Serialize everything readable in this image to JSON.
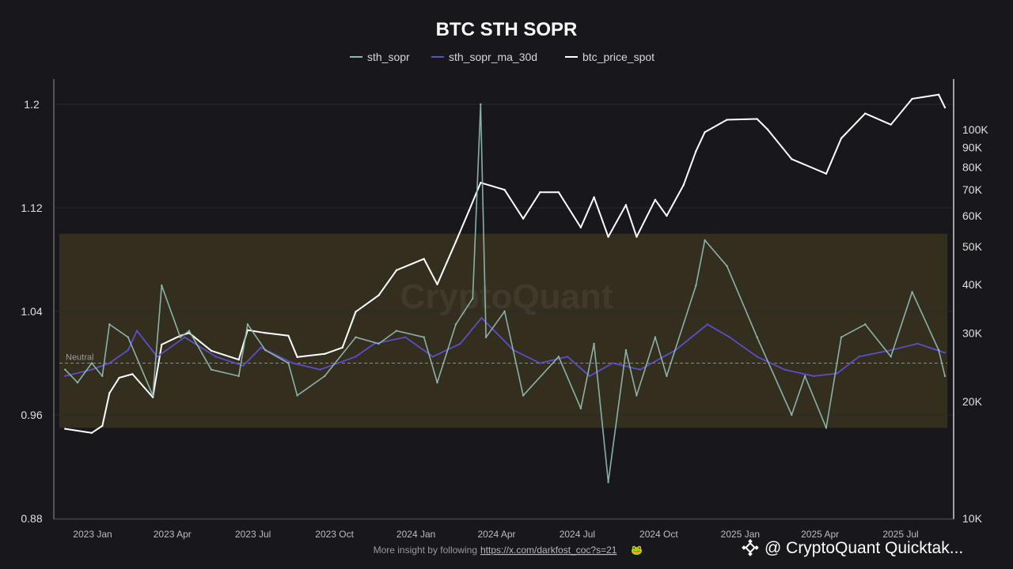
{
  "chart_data": {
    "type": "line",
    "title": "BTC STH SOPR",
    "legend": {
      "placement": "top-center",
      "entries": [
        {
          "name": "sth_sopr",
          "color": "#8fb8b0"
        },
        {
          "name": "sth_sopr_ma_30d",
          "color": "#5b4fc8"
        },
        {
          "name": "btc_price_spot",
          "color": "#ffffff"
        }
      ]
    },
    "y_left": {
      "ticks": [
        "1.2",
        "1.12",
        "1.04",
        "0.96",
        "0.88"
      ],
      "tick_values": [
        1.2,
        1.12,
        1.04,
        0.96,
        0.88
      ],
      "ylim": [
        0.88,
        1.2
      ]
    },
    "y_right": {
      "scale": "log",
      "ticks": [
        "100K",
        "90K",
        "80K",
        "70K",
        "60K",
        "50K",
        "40K",
        "30K",
        "20K",
        "10K"
      ],
      "tick_values": [
        100000,
        90000,
        80000,
        70000,
        60000,
        50000,
        40000,
        30000,
        20000,
        10000
      ]
    },
    "x_axis": {
      "ticks": [
        "2023 Jan",
        "2023 Apr",
        "2023 Jul",
        "2023 Oct",
        "2024 Jan",
        "2024 Apr",
        "2024 Jul",
        "2024 Oct",
        "2025 Jan",
        "2025 Apr",
        "2025 Jul"
      ],
      "tick_dates": [
        "2023-01-01",
        "2023-04-01",
        "2023-07-01",
        "2023-10-01",
        "2024-01-01",
        "2024-04-01",
        "2024-07-01",
        "2024-10-01",
        "2025-01-01",
        "2025-04-01",
        "2025-07-01"
      ]
    },
    "band": {
      "y_from": 0.95,
      "y_to": 1.1,
      "color": "#3a3220"
    },
    "neutral_line": {
      "label": "Neutral",
      "value": 1.0
    },
    "grid": true,
    "series": [
      {
        "name": "btc_price_spot",
        "points": [
          [
            "2022-12-01",
            17000
          ],
          [
            "2022-12-31",
            16600
          ],
          [
            "2023-01-12",
            17300
          ],
          [
            "2023-01-20",
            21000
          ],
          [
            "2023-01-31",
            23000
          ],
          [
            "2023-02-15",
            23500
          ],
          [
            "2023-03-10",
            20500
          ],
          [
            "2023-03-20",
            28000
          ],
          [
            "2023-04-10",
            29500
          ],
          [
            "2023-04-20",
            30000
          ],
          [
            "2023-05-15",
            27000
          ],
          [
            "2023-06-15",
            25600
          ],
          [
            "2023-06-25",
            30500
          ],
          [
            "2023-07-15",
            30000
          ],
          [
            "2023-08-10",
            29500
          ],
          [
            "2023-08-20",
            26000
          ],
          [
            "2023-09-20",
            26500
          ],
          [
            "2023-10-10",
            27500
          ],
          [
            "2023-10-25",
            34000
          ],
          [
            "2023-11-20",
            37500
          ],
          [
            "2023-12-10",
            43500
          ],
          [
            "2024-01-10",
            46500
          ],
          [
            "2024-01-25",
            40000
          ],
          [
            "2024-02-15",
            51500
          ],
          [
            "2024-03-01",
            62000
          ],
          [
            "2024-03-14",
            73000
          ],
          [
            "2024-04-10",
            70000
          ],
          [
            "2024-05-01",
            59000
          ],
          [
            "2024-05-20",
            69000
          ],
          [
            "2024-06-10",
            69000
          ],
          [
            "2024-07-05",
            56000
          ],
          [
            "2024-07-20",
            67000
          ],
          [
            "2024-08-05",
            53000
          ],
          [
            "2024-08-25",
            64000
          ],
          [
            "2024-09-06",
            53000
          ],
          [
            "2024-09-27",
            66000
          ],
          [
            "2024-10-10",
            60000
          ],
          [
            "2024-10-29",
            72000
          ],
          [
            "2024-11-12",
            88000
          ],
          [
            "2024-11-22",
            98500
          ],
          [
            "2024-12-17",
            106000
          ],
          [
            "2025-01-20",
            106500
          ],
          [
            "2025-02-01",
            100000
          ],
          [
            "2025-02-28",
            84000
          ],
          [
            "2025-04-08",
            77000
          ],
          [
            "2025-04-25",
            95000
          ],
          [
            "2025-05-22",
            110000
          ],
          [
            "2025-06-20",
            103000
          ],
          [
            "2025-07-14",
            120000
          ],
          [
            "2025-08-13",
            123000
          ],
          [
            "2025-08-20",
            114000
          ]
        ]
      },
      {
        "name": "sth_sopr_ma_30d",
        "points": [
          [
            "2022-12-01",
            0.99
          ],
          [
            "2022-12-31",
            0.995
          ],
          [
            "2023-01-20",
            1.0
          ],
          [
            "2023-02-10",
            1.01
          ],
          [
            "2023-02-20",
            1.025
          ],
          [
            "2023-03-15",
            1.005
          ],
          [
            "2023-04-15",
            1.02
          ],
          [
            "2023-05-20",
            1.005
          ],
          [
            "2023-06-20",
            0.998
          ],
          [
            "2023-07-10",
            1.012
          ],
          [
            "2023-08-15",
            1.0
          ],
          [
            "2023-09-15",
            0.995
          ],
          [
            "2023-10-25",
            1.005
          ],
          [
            "2023-11-15",
            1.015
          ],
          [
            "2023-12-20",
            1.02
          ],
          [
            "2024-01-20",
            1.005
          ],
          [
            "2024-02-20",
            1.015
          ],
          [
            "2024-03-15",
            1.035
          ],
          [
            "2024-04-20",
            1.01
          ],
          [
            "2024-05-20",
            1.0
          ],
          [
            "2024-06-20",
            1.005
          ],
          [
            "2024-07-15",
            0.99
          ],
          [
            "2024-08-10",
            1.0
          ],
          [
            "2024-09-10",
            0.995
          ],
          [
            "2024-10-20",
            1.01
          ],
          [
            "2024-11-25",
            1.03
          ],
          [
            "2024-12-20",
            1.02
          ],
          [
            "2025-01-20",
            1.005
          ],
          [
            "2025-02-20",
            0.995
          ],
          [
            "2025-03-25",
            0.99
          ],
          [
            "2025-04-20",
            0.992
          ],
          [
            "2025-05-15",
            1.005
          ],
          [
            "2025-06-20",
            1.01
          ],
          [
            "2025-07-20",
            1.015
          ],
          [
            "2025-08-20",
            1.008
          ]
        ]
      },
      {
        "name": "sth_sopr",
        "points": [
          [
            "2022-12-01",
            0.995
          ],
          [
            "2022-12-15",
            0.985
          ],
          [
            "2022-12-31",
            1.0
          ],
          [
            "2023-01-12",
            0.99
          ],
          [
            "2023-01-20",
            1.03
          ],
          [
            "2023-02-10",
            1.02
          ],
          [
            "2023-03-10",
            0.975
          ],
          [
            "2023-03-20",
            1.06
          ],
          [
            "2023-04-10",
            1.02
          ],
          [
            "2023-04-20",
            1.025
          ],
          [
            "2023-05-15",
            0.995
          ],
          [
            "2023-06-15",
            0.99
          ],
          [
            "2023-06-25",
            1.03
          ],
          [
            "2023-07-15",
            1.01
          ],
          [
            "2023-08-10",
            1.0
          ],
          [
            "2023-08-20",
            0.975
          ],
          [
            "2023-09-20",
            0.99
          ],
          [
            "2023-10-25",
            1.02
          ],
          [
            "2023-11-20",
            1.015
          ],
          [
            "2023-12-10",
            1.025
          ],
          [
            "2024-01-10",
            1.02
          ],
          [
            "2024-01-25",
            0.985
          ],
          [
            "2024-02-15",
            1.03
          ],
          [
            "2024-03-05",
            1.05
          ],
          [
            "2024-03-14",
            1.2
          ],
          [
            "2024-03-20",
            1.02
          ],
          [
            "2024-04-10",
            1.04
          ],
          [
            "2024-05-01",
            0.975
          ],
          [
            "2024-06-10",
            1.005
          ],
          [
            "2024-07-05",
            0.965
          ],
          [
            "2024-07-20",
            1.015
          ],
          [
            "2024-08-05",
            0.908
          ],
          [
            "2024-08-25",
            1.01
          ],
          [
            "2024-09-06",
            0.975
          ],
          [
            "2024-09-27",
            1.02
          ],
          [
            "2024-10-10",
            0.99
          ],
          [
            "2024-11-12",
            1.06
          ],
          [
            "2024-11-22",
            1.095
          ],
          [
            "2024-12-17",
            1.075
          ],
          [
            "2025-01-20",
            1.02
          ],
          [
            "2025-02-28",
            0.96
          ],
          [
            "2025-03-15",
            0.99
          ],
          [
            "2025-04-08",
            0.95
          ],
          [
            "2025-04-25",
            1.02
          ],
          [
            "2025-05-22",
            1.03
          ],
          [
            "2025-06-20",
            1.005
          ],
          [
            "2025-07-14",
            1.055
          ],
          [
            "2025-08-13",
            1.01
          ],
          [
            "2025-08-20",
            0.99
          ]
        ]
      }
    ]
  },
  "footer": {
    "text": "More insight by following",
    "link": "https://x.com/darkfost_coc?s=21",
    "emoji": "🐸"
  },
  "watermark": "CryptoQuant",
  "brand": {
    "icon": "binance-icon",
    "text": "@ CryptoQuant Quicktak..."
  }
}
